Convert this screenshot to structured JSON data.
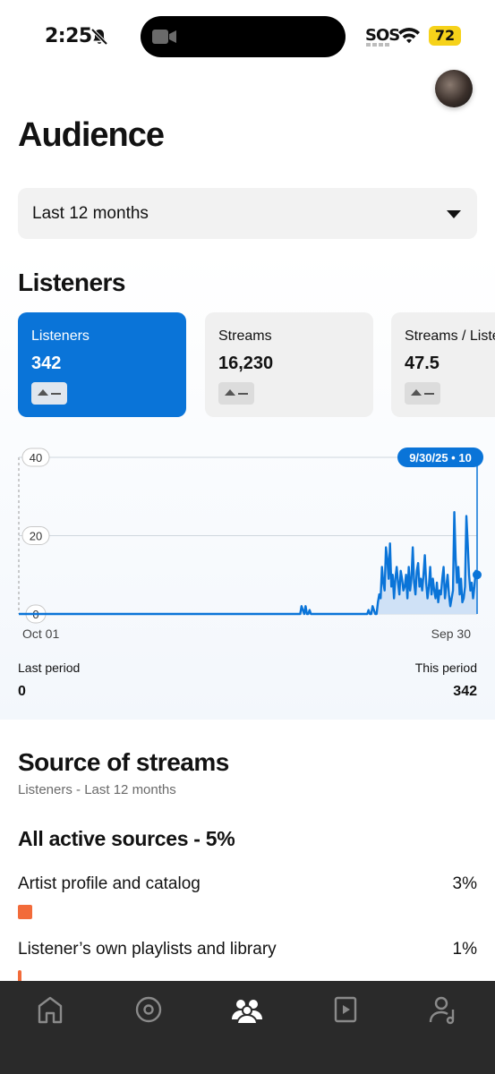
{
  "status_bar": {
    "time": "2:25",
    "sos": "SOS",
    "battery": "72"
  },
  "page": {
    "title": "Audience"
  },
  "range": {
    "selected": "Last 12 months"
  },
  "listeners_section": {
    "title": "Listeners",
    "metrics": [
      {
        "label": "Listeners",
        "value": "342",
        "active": true
      },
      {
        "label": "Streams",
        "value": "16,230",
        "active": false
      },
      {
        "label": "Streams / Listener",
        "value": "47.5",
        "active": false
      }
    ]
  },
  "chart_data": {
    "type": "area",
    "title": "",
    "xlabel": "",
    "ylabel": "",
    "y_ticks": [
      "40",
      "20",
      "0"
    ],
    "ylim": [
      0,
      40
    ],
    "x_tick_labels": [
      "Oct 01",
      "Sep 30"
    ],
    "tooltip": "9/30/25 • 10",
    "grid": true,
    "series": [
      {
        "values": [
          0,
          0,
          0,
          0,
          0,
          0,
          0,
          0,
          0,
          0,
          0,
          0,
          0,
          0,
          0,
          0,
          0,
          0,
          0,
          0,
          0,
          0,
          0,
          0,
          0,
          0,
          0,
          0,
          0,
          0,
          0,
          0,
          0,
          0,
          0,
          0,
          0,
          0,
          0,
          0,
          0,
          0,
          0,
          0,
          0,
          0,
          0,
          0,
          0,
          0,
          0,
          0,
          0,
          0,
          0,
          0,
          0,
          0,
          0,
          0,
          0,
          0,
          0,
          0,
          0,
          0,
          0,
          0,
          0,
          0,
          0,
          0,
          0,
          0,
          0,
          0,
          0,
          0,
          0,
          0,
          0,
          0,
          0,
          0,
          0,
          0,
          0,
          0,
          0,
          0,
          0,
          0,
          0,
          0,
          0,
          0,
          0,
          0,
          0,
          0,
          0,
          0,
          0,
          0,
          0,
          0,
          0,
          0,
          0,
          0,
          0,
          0,
          0,
          0,
          0,
          0,
          0,
          0,
          0,
          0,
          0,
          0,
          0,
          0,
          0,
          0,
          0,
          0,
          0,
          0,
          0,
          0,
          0,
          0,
          0,
          0,
          0,
          0,
          0,
          0,
          0,
          0,
          0,
          0,
          0,
          0,
          0,
          0,
          0,
          0,
          0,
          0,
          0,
          0,
          0,
          0,
          0,
          0,
          0,
          0,
          0,
          0,
          0,
          0,
          0,
          0,
          0,
          0,
          0,
          0,
          0,
          0,
          0,
          0,
          0,
          0,
          0,
          0,
          0,
          0,
          0,
          0,
          0,
          0,
          0,
          0,
          0,
          0,
          0,
          0,
          0,
          0,
          0,
          0,
          0,
          0,
          0,
          0,
          0,
          0,
          0,
          0,
          0,
          0,
          0,
          0,
          0,
          0,
          0,
          0,
          0,
          2,
          1,
          0,
          2,
          0,
          0,
          1,
          0,
          0,
          0,
          0,
          0,
          0,
          0,
          0,
          0,
          0,
          0,
          0,
          0,
          0,
          0,
          0,
          0,
          0,
          0,
          0,
          0,
          0,
          0,
          0,
          0,
          0,
          0,
          0,
          0,
          0,
          0,
          0,
          0,
          0,
          0,
          0,
          0,
          0,
          0,
          0,
          0,
          0,
          0,
          1,
          0,
          0,
          2,
          1,
          0,
          0,
          3,
          5,
          4,
          12,
          8,
          6,
          17,
          14,
          9,
          18,
          7,
          10,
          4,
          9,
          12,
          8,
          5,
          11,
          9,
          6,
          7,
          10,
          4,
          12,
          6,
          9,
          17,
          8,
          5,
          11,
          13,
          7,
          9,
          6,
          10,
          15,
          8,
          4,
          7,
          12,
          5,
          9,
          6,
          4,
          8,
          3,
          6,
          5,
          9,
          12,
          4,
          7,
          10,
          5,
          2,
          4,
          6,
          26,
          14,
          8,
          12,
          5,
          9,
          3,
          4,
          7,
          25,
          18,
          10,
          6,
          8,
          4,
          7,
          11,
          10
        ]
      }
    ]
  },
  "period": {
    "last_label": "Last period",
    "this_label": "This period",
    "last_value": "0",
    "this_value": "342"
  },
  "source_section": {
    "title": "Source of streams",
    "subtitle": "Listeners - Last 12 months",
    "all_active": "All active sources - 5%",
    "items": [
      {
        "label": "Artist profile and catalog",
        "pct": "3%"
      },
      {
        "label": "Listener’s own playlists and library",
        "pct": "1%"
      }
    ],
    "swatch_color": "#f26b3a"
  },
  "tab_bar": {
    "icons": [
      "home-icon",
      "music-disc-icon",
      "audience-icon",
      "video-icon",
      "profile-music-icon"
    ]
  }
}
